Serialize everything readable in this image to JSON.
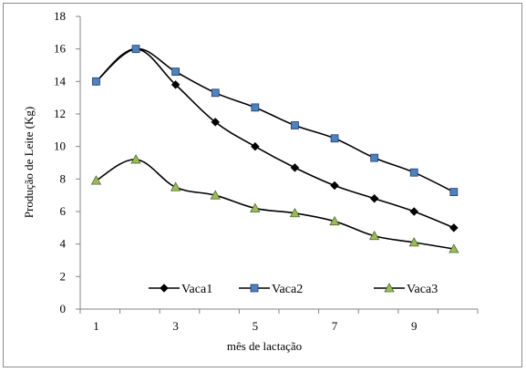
{
  "chart_data": {
    "type": "line",
    "title": "",
    "xlabel": "mês de lactação",
    "ylabel": "Produção de Leite (Kg)",
    "x": [
      1,
      2,
      3,
      4,
      5,
      6,
      7,
      8,
      9,
      10
    ],
    "xticks": [
      "1",
      "3",
      "5",
      "7",
      "9"
    ],
    "xtick_values": [
      1,
      3,
      5,
      7,
      9
    ],
    "xlim": [
      0.6,
      10.6
    ],
    "ylim": [
      0,
      18
    ],
    "yticks": [
      0,
      2,
      4,
      6,
      8,
      10,
      12,
      14,
      16,
      18
    ],
    "grid": false,
    "legend_position": "bottom-inside",
    "series": [
      {
        "name": "Vaca1",
        "marker": "diamond",
        "color": "#000000",
        "values": [
          14.0,
          16.0,
          13.8,
          11.5,
          10.0,
          8.7,
          7.6,
          6.8,
          6.0,
          5.0
        ]
      },
      {
        "name": "Vaca2",
        "marker": "square",
        "color": "#4f81bd",
        "values": [
          14.0,
          16.0,
          14.6,
          13.3,
          12.4,
          11.3,
          10.5,
          9.3,
          8.4,
          7.2
        ]
      },
      {
        "name": "Vaca3",
        "marker": "triangle",
        "color": "#9bbb59",
        "values": [
          7.9,
          9.2,
          7.5,
          7.0,
          6.2,
          5.9,
          5.4,
          4.5,
          4.1,
          3.7
        ]
      }
    ]
  }
}
